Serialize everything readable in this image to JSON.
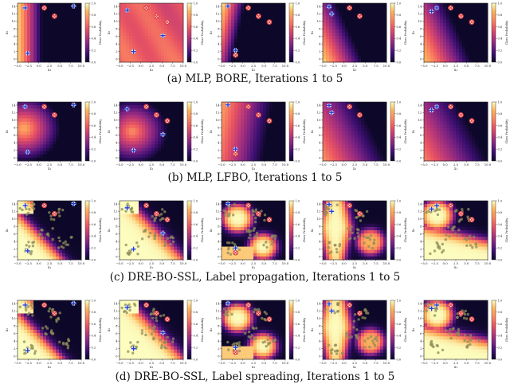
{
  "rows": [
    {
      "caption": "(a) MLP, BORE, Iterations 1 to 5",
      "axis_labels": {
        "x": [
          "x₁",
          "x₁",
          "x₁",
          "x₁",
          "x₁"
        ],
        "y": [
          "x₂",
          "x₂",
          "x₂",
          "x₂",
          "x₂"
        ]
      }
    },
    {
      "caption": "(b) MLP, LFBO, Iterations 1 to 5",
      "axis_labels": {
        "x": [
          "x₁",
          "x₁",
          "x₁",
          "x₁",
          "x₁"
        ],
        "y": [
          "x₂",
          "x₂",
          "x₂",
          "x₂",
          "x₂"
        ]
      }
    },
    {
      "caption": "(c) DRE-BO-SSL, Label propagation, Iterations 1 to 5",
      "axis_labels": {
        "x": [
          "x₁",
          "x₁",
          "x₁",
          "x₁",
          "x₁"
        ],
        "y": [
          "x₂",
          "x₂",
          "x₂",
          "x₂",
          "x₂"
        ]
      }
    },
    {
      "caption": "(d) DRE-BO-SSL, Label spreading, Iterations 1 to 5",
      "axis_labels": {
        "x": [
          "x₁",
          "x₁",
          "x₁",
          "x₁",
          "x₁"
        ],
        "y": [
          "x₂",
          "x₂",
          "x₂",
          "x₂",
          "x₂"
        ]
      }
    }
  ],
  "x_ticks": [
    "−5.0",
    "−2.5",
    "0.0",
    "2.5",
    "5.0",
    "7.5",
    "10.0"
  ],
  "y_ticks": [
    "14",
    "12",
    "10",
    "8",
    "6",
    "4",
    "2",
    "0"
  ],
  "colorbar": {
    "label": "Class Probability",
    "ticks": [
      "1.0",
      "0.8",
      "0.6",
      "0.4",
      "0.2",
      "0.0"
    ]
  },
  "colors": {
    "colormap": [
      "#0d0829",
      "#3b0f70",
      "#7c2382",
      "#b73779",
      "#e95462",
      "#fb8761",
      "#fcb45a",
      "#fcfdbf"
    ],
    "query_marker": "#1f3fd6",
    "observation_marker": "#e04040",
    "unlabeled_point": "#8f8c5a"
  }
}
